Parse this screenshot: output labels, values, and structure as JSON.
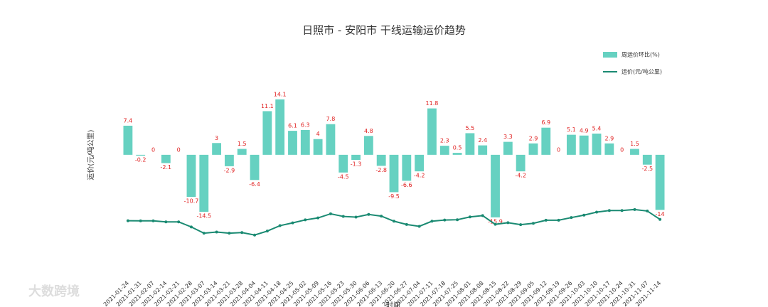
{
  "chart_data": {
    "type": "bar",
    "title": "日照市 - 安阳市 干线运输运价趋势",
    "x_label": "时间",
    "y_label": "运价(元/吨公里)",
    "watermark": "大数跨境",
    "categories": [
      "2021-01-24",
      "2021-01-31",
      "2021-02-07",
      "2021-02-14",
      "2021-02-21",
      "2021-02-28",
      "2021-03-07",
      "2021-03-14",
      "2021-03-21",
      "2021-03-28",
      "2021-04-04",
      "2021-04-11",
      "2021-04-18",
      "2021-04-25",
      "2021-05-02",
      "2021-05-09",
      "2021-05-16",
      "2021-05-23",
      "2021-05-30",
      "2021-06-06",
      "2021-06-13",
      "2021-06-20",
      "2021-06-27",
      "2021-07-04",
      "2021-07-11",
      "2021-07-18",
      "2021-07-25",
      "2021-08-01",
      "2021-08-08",
      "2021-08-15",
      "2021-08-22",
      "2021-08-29",
      "2021-09-05",
      "2021-09-12",
      "2021-09-19",
      "2021-09-26",
      "2021-10-03",
      "2021-10-10",
      "2021-10-17",
      "2021-10-24",
      "2021-10-31",
      "2021-11-07",
      "2021-11-14"
    ],
    "series": [
      {
        "name": "周运价环比(%)",
        "type": "bar",
        "color": "#66d1c1",
        "values": [
          7.4,
          -0.2,
          0.0,
          -2.1,
          0.0,
          -10.7,
          -14.5,
          3.0,
          -2.9,
          1.5,
          -6.4,
          11.1,
          14.1,
          6.1,
          6.3,
          4.0,
          7.8,
          -4.5,
          -1.3,
          4.8,
          -2.8,
          -9.5,
          -6.6,
          -4.2,
          11.8,
          2.3,
          0.5,
          5.5,
          2.4,
          -15.9,
          3.3,
          -4.2,
          2.9,
          6.9,
          0.0,
          5.1,
          4.9,
          5.4,
          2.9,
          0.0,
          1.5,
          -2.5,
          -14.0
        ]
      },
      {
        "name": "运价(元/吨公里)",
        "type": "line",
        "axis": "y2",
        "color": "#1a8a72",
        "values": [
          0.3,
          0.299,
          0.299,
          0.293,
          0.293,
          0.262,
          0.224,
          0.231,
          0.224,
          0.228,
          0.213,
          0.237,
          0.27,
          0.287,
          0.305,
          0.317,
          0.342,
          0.326,
          0.322,
          0.338,
          0.328,
          0.297,
          0.277,
          0.266,
          0.297,
          0.304,
          0.306,
          0.323,
          0.331,
          0.278,
          0.288,
          0.276,
          0.284,
          0.303,
          0.303,
          0.319,
          0.334,
          0.352,
          0.362,
          0.362,
          0.368,
          0.359,
          0.308
        ]
      }
    ],
    "ylim": [
      -29.3,
      21.3
    ],
    "y2lim": [
      0,
      1.21
    ],
    "label_color": "#e02020",
    "legend": "upper right"
  }
}
